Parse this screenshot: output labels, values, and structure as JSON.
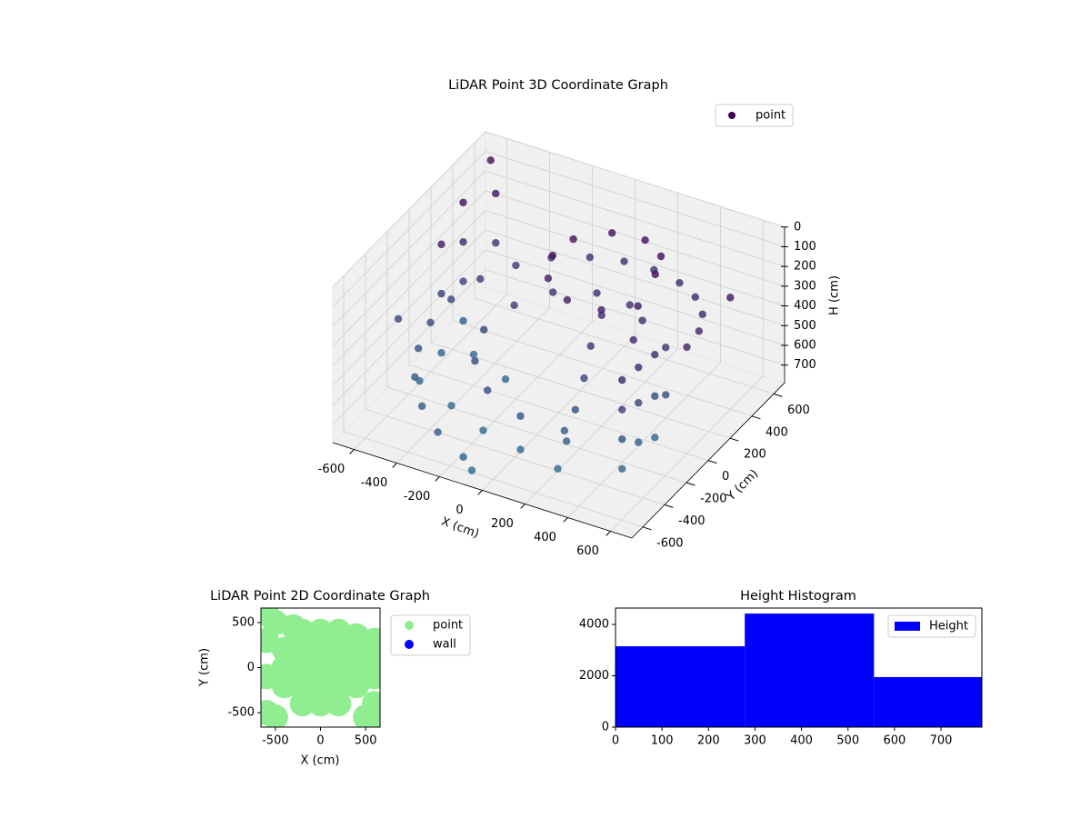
{
  "chart_data": [
    {
      "type": "scatter3d",
      "title": "LiDAR Point 3D Coordinate Graph",
      "xlabel": "X (cm)",
      "ylabel": "Y (cm)",
      "zlabel": "H (cm)",
      "xlim": [
        -700,
        700
      ],
      "ylim": [
        -700,
        700
      ],
      "zlim": [
        790,
        0
      ],
      "xticks": [
        -600,
        -400,
        -200,
        0,
        200,
        400,
        600
      ],
      "yticks": [
        -600,
        -400,
        -200,
        0,
        200,
        400,
        600
      ],
      "zticks": [
        0,
        100,
        200,
        300,
        400,
        500,
        600,
        700
      ],
      "grid": true,
      "legend": "upper right",
      "series": [
        {
          "name": "point",
          "color": "#440154",
          "color_range": [
            "#440154",
            "#31688e"
          ],
          "x": [
            600,
            580,
            520,
            420,
            300,
            150,
            0,
            -150,
            -300,
            -420,
            -520,
            -580,
            -600,
            -580,
            -520,
            -420,
            -300,
            -150,
            350,
            300,
            180,
            0,
            -180,
            -300,
            -350,
            -300,
            -180,
            0,
            180,
            350,
            300,
            180,
            30,
            -100,
            -130,
            -80,
            50,
            200,
            330,
            150,
            150,
            170,
            180,
            190,
            200,
            450,
            450,
            450,
            450,
            450,
            450,
            450,
            450,
            450,
            450,
            450,
            450,
            -600,
            -600,
            -600,
            -600,
            -600,
            -600,
            -600,
            -550,
            -550,
            -600,
            -400,
            -200,
            0,
            -500,
            -300,
            -650,
            -700,
            -100,
            650
          ],
          "y": [
            0,
            150,
            300,
            430,
            520,
            580,
            600,
            580,
            520,
            430,
            300,
            150,
            0,
            -150,
            -300,
            -430,
            -520,
            -580,
            0,
            180,
            300,
            350,
            300,
            180,
            0,
            -180,
            -300,
            -350,
            -300,
            200,
            350,
            440,
            430,
            330,
            200,
            60,
            -20,
            0,
            80,
            100,
            0,
            -100,
            -200,
            -300,
            -400,
            -300,
            -300,
            -300,
            -300,
            -150,
            -150,
            -150,
            0,
            0,
            0,
            100,
            100,
            300,
            300,
            300,
            300,
            100,
            100,
            100,
            500,
            500,
            -100,
            -200,
            -300,
            -350,
            200,
            100,
            650,
            -100,
            -600,
            300
          ],
          "values": [
            250,
            260,
            280,
            300,
            320,
            340,
            360,
            380,
            400,
            430,
            460,
            500,
            540,
            580,
            620,
            660,
            700,
            740,
            300,
            320,
            350,
            380,
            410,
            450,
            490,
            530,
            570,
            610,
            650,
            80,
            90,
            100,
            110,
            130,
            150,
            170,
            190,
            200,
            180,
            300,
            400,
            500,
            600,
            700,
            780,
            300,
            450,
            600,
            750,
            320,
            500,
            700,
            340,
            550,
            760,
            360,
            600,
            100,
            300,
            500,
            700,
            200,
            450,
            750,
            150,
            400,
            780,
            780,
            780,
            780,
            780,
            780,
            100,
            500,
            780,
            150
          ]
        }
      ]
    },
    {
      "type": "scatter",
      "title": "LiDAR Point 2D Coordinate Graph",
      "xlabel": "X (cm)",
      "ylabel": "Y (cm)",
      "xlim": [
        -660,
        660
      ],
      "ylim": [
        -660,
        660
      ],
      "xticks": [
        -500,
        0,
        500
      ],
      "yticks": [
        -500,
        0,
        500
      ],
      "legend": "outside right",
      "series": [
        {
          "name": "point",
          "color": "#90ee90",
          "x": [
            -200,
            0,
            200,
            -400,
            -200,
            0,
            200,
            400,
            -400,
            -200,
            0,
            200,
            400,
            -400,
            -200,
            0,
            200,
            400,
            -200,
            0,
            200,
            -600,
            -500,
            -600,
            -600,
            -600,
            -500,
            600,
            600,
            600,
            600,
            600,
            500,
            400,
            -300
          ],
          "values": [
            -400,
            -400,
            -400,
            -200,
            -200,
            -200,
            -200,
            -200,
            0,
            0,
            0,
            0,
            0,
            200,
            200,
            200,
            200,
            200,
            400,
            400,
            400,
            600,
            500,
            300,
            -100,
            -500,
            -550,
            300,
            100,
            -100,
            -400,
            -600,
            -550,
            350,
            450
          ]
        },
        {
          "name": "wall",
          "color": "#0000ff",
          "x": [],
          "values": []
        }
      ]
    },
    {
      "type": "histogram",
      "title": "Height Histogram",
      "bins": [
        0,
        278,
        556,
        788
      ],
      "xlim": [
        0,
        788
      ],
      "ylim": [
        0,
        4640
      ],
      "xticks": [
        0,
        100,
        200,
        300,
        400,
        500,
        600,
        700
      ],
      "yticks": [
        0,
        2000,
        4000
      ],
      "legend": "upper right",
      "series": [
        {
          "name": "Height",
          "color": "#0000ff",
          "values": [
            3150,
            4425,
            1950
          ]
        }
      ]
    }
  ]
}
